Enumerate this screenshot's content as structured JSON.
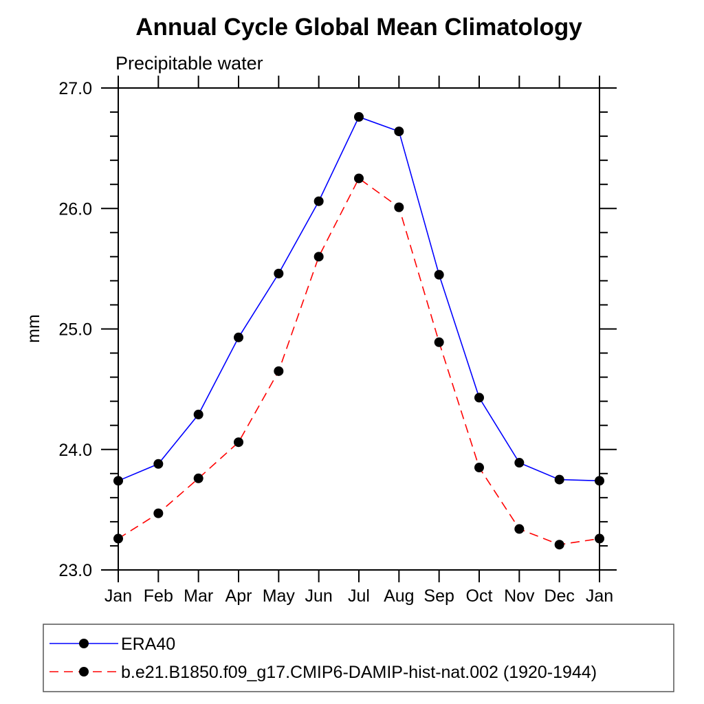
{
  "page": {
    "background": "#ffffff"
  },
  "chart_data": {
    "type": "line",
    "title": "Annual Cycle Global Mean Climatology",
    "subtitle": "Precipitable water",
    "ylabel": "mm",
    "x": [
      "Jan",
      "Feb",
      "Mar",
      "Apr",
      "May",
      "Jun",
      "Jul",
      "Aug",
      "Sep",
      "Oct",
      "Nov",
      "Dec",
      "Jan"
    ],
    "ylim": [
      23.0,
      27.0
    ],
    "y_tick_values": [
      23.0,
      24.0,
      25.0,
      26.0,
      27.0
    ],
    "y_tick_labels": [
      "23.0",
      "24.0",
      "25.0",
      "26.0",
      "27.0"
    ],
    "y_minor_step": 0.2,
    "grid": false,
    "frame_color": "#000000",
    "legend_position": "bottom-left-box",
    "series": [
      {
        "name": "ERA40",
        "color": "#0000ff",
        "line_style": "solid",
        "marker": "filled-circle",
        "marker_color": "#000000",
        "values": [
          23.74,
          23.88,
          24.29,
          24.93,
          25.46,
          26.06,
          26.76,
          26.64,
          25.45,
          24.43,
          23.89,
          23.75,
          23.74
        ]
      },
      {
        "name": "b.e21.B1850.f09_g17.CMIP6-DAMIP-hist-nat.002 (1920-1944)",
        "color": "#ff0000",
        "line_style": "dashed",
        "marker": "filled-circle",
        "marker_color": "#000000",
        "values": [
          23.26,
          23.47,
          23.76,
          24.06,
          24.65,
          25.6,
          26.25,
          26.01,
          24.89,
          23.85,
          23.34,
          23.21,
          23.26
        ]
      }
    ]
  }
}
